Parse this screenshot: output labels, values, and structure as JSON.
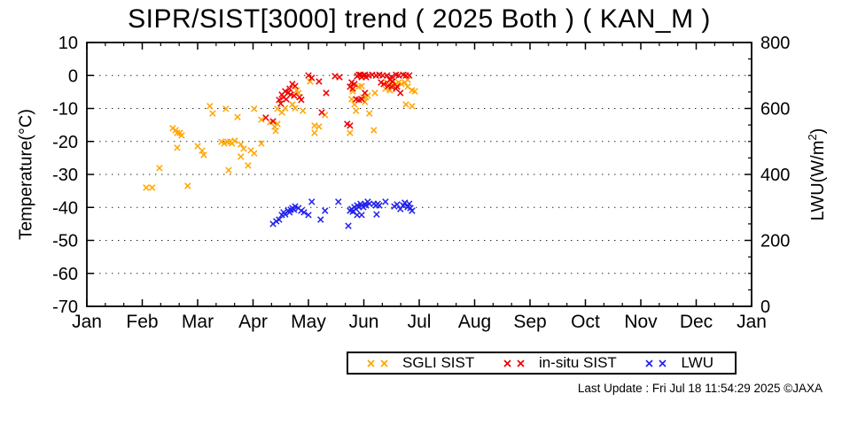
{
  "title": "SIPR/SIST[3000] trend ( 2025 Both ) ( KAN_M )",
  "footer": "Last Update : Fri Jul 18 11:54:29 2025  ©JAXA",
  "chart_data": {
    "type": "scatter",
    "title": "SIPR/SIST[3000] trend ( 2025 Both ) ( KAN_M )",
    "grid": "horizontal-dotted",
    "legend_position": "below",
    "x_axis": {
      "unit": "month (0 = Jan 1)",
      "range": [
        0,
        12
      ],
      "tick_labels": [
        "Jan",
        "Feb",
        "Mar",
        "Apr",
        "May",
        "Jun",
        "Jul",
        "Aug",
        "Sep",
        "Oct",
        "Nov",
        "Dec",
        "Jan"
      ],
      "minor_ticks_per_month": 2
    },
    "y_axis": {
      "label": "Temperature(°C)",
      "range": [
        -70,
        10
      ],
      "tick_values": [
        10,
        0,
        -10,
        -20,
        -30,
        -40,
        -50,
        -60,
        -70
      ],
      "grid_values": [
        0,
        -10,
        -20,
        -30,
        -40,
        -50,
        -60
      ]
    },
    "y2_axis": {
      "label_base": "LWU(W/m",
      "label_sup": "2",
      "label_end": ")",
      "range": [
        0,
        800
      ],
      "tick_values": [
        800,
        600,
        400,
        200,
        0
      ],
      "minor_step": 50
    },
    "series": [
      {
        "name": "SGLI SIST",
        "id": "sgli-sist",
        "color": "#FFA500",
        "axis": "y",
        "unit": "°C",
        "points": [
          [
            1.07,
            -34.0
          ],
          [
            1.18,
            -34.0
          ],
          [
            1.31,
            -28.1
          ],
          [
            1.55,
            -16.0
          ],
          [
            1.6,
            -16.6
          ],
          [
            1.63,
            -17.4
          ],
          [
            1.68,
            -17.4
          ],
          [
            1.71,
            -18.2
          ],
          [
            1.63,
            -21.9
          ],
          [
            1.82,
            -33.5
          ],
          [
            2.0,
            -21.4
          ],
          [
            2.08,
            -22.8
          ],
          [
            2.11,
            -24.1
          ],
          [
            2.22,
            -9.3
          ],
          [
            2.27,
            -11.5
          ],
          [
            2.43,
            -20.1
          ],
          [
            2.48,
            -20.6
          ],
          [
            2.51,
            -10.1
          ],
          [
            2.54,
            -20.1
          ],
          [
            2.56,
            -28.7
          ],
          [
            2.59,
            -20.1
          ],
          [
            2.62,
            -20.6
          ],
          [
            2.67,
            -19.8
          ],
          [
            2.72,
            -12.6
          ],
          [
            2.78,
            -20.9
          ],
          [
            2.78,
            -24.6
          ],
          [
            2.83,
            -22.2
          ],
          [
            2.91,
            -27.3
          ],
          [
            2.96,
            -22.7
          ],
          [
            3.02,
            -10.1
          ],
          [
            3.02,
            -23.6
          ],
          [
            3.15,
            -13.4
          ],
          [
            3.15,
            -20.6
          ],
          [
            3.31,
            -14.2
          ],
          [
            3.39,
            -15.5
          ],
          [
            3.41,
            -16.8
          ],
          [
            3.44,
            -10.1
          ],
          [
            3.44,
            -14.7
          ],
          [
            3.52,
            -11.2
          ],
          [
            3.58,
            -9.9
          ],
          [
            3.71,
            -8.8
          ],
          [
            3.76,
            -9.9
          ],
          [
            3.79,
            -4.5
          ],
          [
            3.82,
            -5.3
          ],
          [
            3.9,
            -10.7
          ],
          [
            4.03,
            -1.8
          ],
          [
            4.11,
            -15.2
          ],
          [
            4.11,
            -17.4
          ],
          [
            4.19,
            -15.5
          ],
          [
            4.3,
            -12.0
          ],
          [
            4.75,
            -17.4
          ],
          [
            4.78,
            -7.2
          ],
          [
            4.8,
            -4.8
          ],
          [
            4.83,
            -8.8
          ],
          [
            4.86,
            -10.7
          ],
          [
            4.91,
            -3.4
          ],
          [
            4.96,
            -3.2
          ],
          [
            4.99,
            -6.6
          ],
          [
            5.02,
            -8.0
          ],
          [
            5.04,
            -6.6
          ],
          [
            5.07,
            -6.1
          ],
          [
            5.1,
            -11.5
          ],
          [
            5.18,
            -16.6
          ],
          [
            5.2,
            -5.3
          ],
          [
            5.39,
            -4.0
          ],
          [
            5.42,
            -2.1
          ],
          [
            5.47,
            -4.5
          ],
          [
            5.5,
            -2.6
          ],
          [
            5.58,
            -2.6
          ],
          [
            5.63,
            -2.1
          ],
          [
            5.68,
            -2.6
          ],
          [
            5.74,
            -2.1
          ],
          [
            5.76,
            -8.8
          ],
          [
            5.79,
            -1.3
          ],
          [
            5.79,
            -3.4
          ],
          [
            5.87,
            -9.3
          ],
          [
            5.87,
            -4.5
          ],
          [
            5.92,
            -4.8
          ]
        ]
      },
      {
        "name": "in-situ SIST",
        "id": "insitu-sist",
        "color": "#EE0000",
        "axis": "y",
        "unit": "°C",
        "points": [
          [
            3.23,
            -12.8
          ],
          [
            3.36,
            -13.9
          ],
          [
            3.47,
            -7.4
          ],
          [
            3.5,
            -8.5
          ],
          [
            3.52,
            -5.8
          ],
          [
            3.55,
            -6.6
          ],
          [
            3.58,
            -4.8
          ],
          [
            3.6,
            -7.2
          ],
          [
            3.63,
            -5.3
          ],
          [
            3.66,
            -4.0
          ],
          [
            3.68,
            -5.8
          ],
          [
            3.71,
            -2.6
          ],
          [
            3.74,
            -6.1
          ],
          [
            3.76,
            -3.2
          ],
          [
            3.84,
            -6.6
          ],
          [
            3.87,
            -7.4
          ],
          [
            4.0,
            0.0
          ],
          [
            4.06,
            -0.7
          ],
          [
            4.19,
            -1.8
          ],
          [
            4.24,
            -11.2
          ],
          [
            4.32,
            -5.3
          ],
          [
            4.48,
            -0.2
          ],
          [
            4.56,
            -0.5
          ],
          [
            4.7,
            -14.7
          ],
          [
            4.75,
            -15.2
          ],
          [
            4.75,
            -3.4
          ],
          [
            4.78,
            -2.1
          ],
          [
            4.8,
            -4.0
          ],
          [
            4.83,
            -2.6
          ],
          [
            4.86,
            -7.2
          ],
          [
            4.88,
            -0.2
          ],
          [
            4.91,
            0.2
          ],
          [
            4.91,
            -7.4
          ],
          [
            4.94,
            0.2
          ],
          [
            4.96,
            -0.5
          ],
          [
            4.96,
            -7.2
          ],
          [
            4.99,
            0.0
          ],
          [
            5.02,
            0.2
          ],
          [
            5.02,
            -5.3
          ],
          [
            5.04,
            -0.5
          ],
          [
            5.09,
            0.0
          ],
          [
            5.15,
            0.2
          ],
          [
            5.22,
            0.0
          ],
          [
            5.28,
            0.2
          ],
          [
            5.31,
            -2.1
          ],
          [
            5.34,
            0.0
          ],
          [
            5.36,
            -2.6
          ],
          [
            5.42,
            0.0
          ],
          [
            5.44,
            -3.2
          ],
          [
            5.47,
            -1.3
          ],
          [
            5.5,
            -0.5
          ],
          [
            5.5,
            -3.4
          ],
          [
            5.52,
            -1.8
          ],
          [
            5.58,
            0.2
          ],
          [
            5.58,
            -4.0
          ],
          [
            5.6,
            -3.4
          ],
          [
            5.63,
            0.0
          ],
          [
            5.66,
            -5.3
          ],
          [
            5.71,
            0.2
          ],
          [
            5.76,
            0.0
          ],
          [
            5.82,
            0.0
          ]
        ]
      },
      {
        "name": "LWU",
        "id": "lwu",
        "color": "#2222EE",
        "axis": "y2",
        "unit": "W/m2",
        "points": [
          [
            3.36,
            250
          ],
          [
            3.42,
            258
          ],
          [
            3.47,
            263
          ],
          [
            3.52,
            277
          ],
          [
            3.55,
            285
          ],
          [
            3.58,
            279
          ],
          [
            3.63,
            290
          ],
          [
            3.66,
            285
          ],
          [
            3.68,
            293
          ],
          [
            3.71,
            298
          ],
          [
            3.74,
            293
          ],
          [
            3.76,
            303
          ],
          [
            3.82,
            298
          ],
          [
            3.87,
            290
          ],
          [
            3.92,
            285
          ],
          [
            4.0,
            277
          ],
          [
            4.06,
            317
          ],
          [
            4.22,
            263
          ],
          [
            4.3,
            290
          ],
          [
            4.54,
            317
          ],
          [
            4.72,
            244
          ],
          [
            4.75,
            290
          ],
          [
            4.78,
            295
          ],
          [
            4.8,
            287
          ],
          [
            4.83,
            301
          ],
          [
            4.86,
            295
          ],
          [
            4.88,
            306
          ],
          [
            4.88,
            277
          ],
          [
            4.91,
            301
          ],
          [
            4.94,
            311
          ],
          [
            4.96,
            306
          ],
          [
            4.96,
            277
          ],
          [
            4.99,
            301
          ],
          [
            5.02,
            311
          ],
          [
            5.04,
            306
          ],
          [
            5.07,
            317
          ],
          [
            5.1,
            311
          ],
          [
            5.18,
            311
          ],
          [
            5.22,
            306
          ],
          [
            5.25,
            311
          ],
          [
            5.28,
            306
          ],
          [
            5.23,
            279
          ],
          [
            5.39,
            317
          ],
          [
            5.55,
            303
          ],
          [
            5.6,
            309
          ],
          [
            5.66,
            295
          ],
          [
            5.71,
            306
          ],
          [
            5.74,
            314
          ],
          [
            5.79,
            301
          ],
          [
            5.82,
            311
          ],
          [
            5.84,
            298
          ],
          [
            5.87,
            290
          ]
        ]
      }
    ]
  }
}
